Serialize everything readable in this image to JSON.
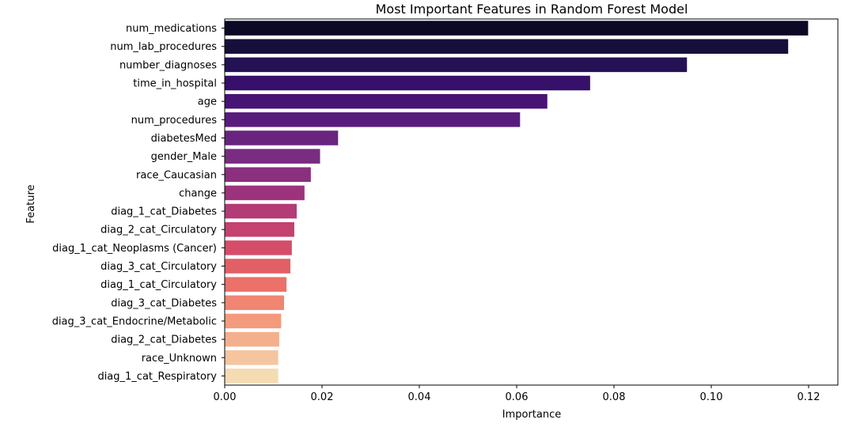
{
  "chart_data": {
    "type": "bar",
    "orientation": "horizontal",
    "title": "Most Important Features in Random Forest Model",
    "xlabel": "Importance",
    "ylabel": "Feature",
    "xlim": [
      0.0,
      0.126
    ],
    "xticks": [
      "0.00",
      "0.02",
      "0.04",
      "0.06",
      "0.08",
      "0.10",
      "0.12"
    ],
    "xtick_values": [
      0.0,
      0.02,
      0.04,
      0.06,
      0.08,
      0.1,
      0.12
    ],
    "grid": false,
    "legend": "none",
    "palette": "magma",
    "categories": [
      "num_medications",
      "num_lab_procedures",
      "number_diagnoses",
      "time_in_hospital",
      "age",
      "num_procedures",
      "diabetesMed",
      "gender_Male",
      "race_Caucasian",
      "change",
      "diag_1_cat_Diabetes",
      "diag_2_cat_Circulatory",
      "diag_1_cat_Neoplasms (Cancer)",
      "diag_3_cat_Circulatory",
      "diag_1_cat_Circulatory",
      "diag_3_cat_Diabetes",
      "diag_3_cat_Endocrine/Metabolic",
      "diag_2_cat_Diabetes",
      "race_Unknown",
      "diag_1_cat_Respiratory"
    ],
    "values": [
      0.1199,
      0.1158,
      0.095,
      0.0751,
      0.0663,
      0.0607,
      0.0233,
      0.0196,
      0.0177,
      0.0164,
      0.0148,
      0.0143,
      0.0138,
      0.0135,
      0.0127,
      0.0122,
      0.0116,
      0.0112,
      0.011,
      0.011
    ],
    "colors": [
      "#0b0924",
      "#170f3b",
      "#251255",
      "#36106b",
      "#471375",
      "#581c7c",
      "#68247f",
      "#792c80",
      "#8b2f7f",
      "#9d337c",
      "#b33b76",
      "#c44170",
      "#d54d69",
      "#e25f66",
      "#eb7169",
      "#f08671",
      "#f39b7c",
      "#f4b08c",
      "#f5c59f",
      "#f5dbb2"
    ]
  }
}
